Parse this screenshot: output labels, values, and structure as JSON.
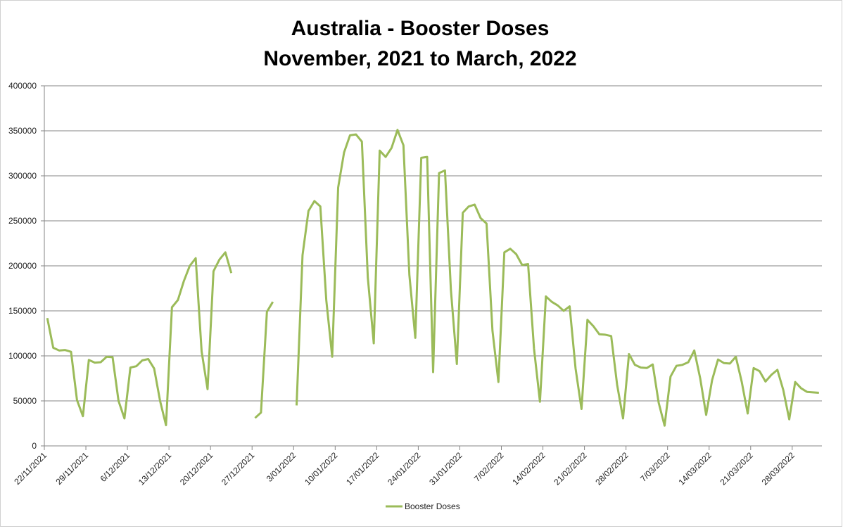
{
  "chart_data": {
    "type": "line",
    "title": "Australia - Booster Doses",
    "subtitle": "November, 2021 to March, 2022",
    "x": [
      "22/11/2021",
      "23/11/2021",
      "24/11/2021",
      "25/11/2021",
      "26/11/2021",
      "27/11/2021",
      "28/11/2021",
      "29/11/2021",
      "30/11/2021",
      "1/12/2021",
      "2/12/2021",
      "3/12/2021",
      "4/12/2021",
      "5/12/2021",
      "6/12/2021",
      "7/12/2021",
      "8/12/2021",
      "9/12/2021",
      "10/12/2021",
      "11/12/2021",
      "12/12/2021",
      "13/12/2021",
      "14/12/2021",
      "15/12/2021",
      "16/12/2021",
      "17/12/2021",
      "18/12/2021",
      "19/12/2021",
      "20/12/2021",
      "21/12/2021",
      "22/12/2021",
      "23/12/2021",
      "24/12/2021",
      "25/12/2021",
      "26/12/2021",
      "27/12/2021",
      "28/12/2021",
      "29/12/2021",
      "30/12/2021",
      "31/12/2021",
      "1/01/2022",
      "2/01/2022",
      "3/01/2022",
      "4/01/2022",
      "5/01/2022",
      "6/01/2022",
      "7/01/2022",
      "8/01/2022",
      "9/01/2022",
      "10/01/2022",
      "11/01/2022",
      "12/01/2022",
      "13/01/2022",
      "14/01/2022",
      "15/01/2022",
      "16/01/2022",
      "17/01/2022",
      "18/01/2022",
      "19/01/2022",
      "20/01/2022",
      "21/01/2022",
      "22/01/2022",
      "23/01/2022",
      "24/01/2022",
      "25/01/2022",
      "26/01/2022",
      "27/01/2022",
      "28/01/2022",
      "29/01/2022",
      "30/01/2022",
      "31/01/2022",
      "1/02/2022",
      "2/02/2022",
      "3/02/2022",
      "4/02/2022",
      "5/02/2022",
      "6/02/2022",
      "7/02/2022",
      "8/02/2022",
      "9/02/2022",
      "10/02/2022",
      "11/02/2022",
      "12/02/2022",
      "13/02/2022",
      "14/02/2022",
      "15/02/2022",
      "16/02/2022",
      "17/02/2022",
      "18/02/2022",
      "19/02/2022",
      "20/02/2022",
      "21/02/2022",
      "22/02/2022",
      "23/02/2022",
      "24/02/2022",
      "25/02/2022",
      "26/02/2022",
      "27/02/2022",
      "28/02/2022",
      "1/03/2022",
      "2/03/2022",
      "3/03/2022",
      "4/03/2022",
      "5/03/2022",
      "6/03/2022",
      "7/03/2022",
      "8/03/2022",
      "9/03/2022",
      "10/03/2022",
      "11/03/2022",
      "12/03/2022",
      "13/03/2022",
      "14/03/2022",
      "15/03/2022",
      "16/03/2022",
      "17/03/2022",
      "18/03/2022",
      "19/03/2022",
      "20/03/2022",
      "21/03/2022",
      "22/03/2022",
      "23/03/2022",
      "24/03/2022",
      "25/03/2022",
      "26/03/2022",
      "27/03/2022",
      "28/03/2022",
      "29/03/2022",
      "30/03/2022",
      "31/03/2022",
      "1/04/2022"
    ],
    "series": [
      {
        "name": "Booster Doses",
        "color": "#9bbb59",
        "values": [
          142000,
          109000,
          106000,
          106500,
          104500,
          51000,
          33000,
          95500,
          92500,
          93000,
          99000,
          98500,
          50000,
          30500,
          87000,
          88500,
          95000,
          96500,
          86000,
          50000,
          23000,
          154000,
          162000,
          183000,
          200000,
          208500,
          105000,
          63000,
          194000,
          207000,
          215000,
          192000,
          null,
          null,
          null,
          31000,
          37000,
          149000,
          160000,
          null,
          null,
          null,
          45000,
          212000,
          261000,
          272000,
          266000,
          162000,
          99000,
          287000,
          326000,
          345000,
          346000,
          338000,
          187000,
          114000,
          328000,
          321000,
          331000,
          351000,
          334000,
          190000,
          120000,
          320000,
          321000,
          82000,
          303000,
          306000,
          173000,
          91000,
          259000,
          266000,
          268000,
          253000,
          247000,
          128000,
          71000,
          215000,
          219000,
          213000,
          201000,
          202000,
          108000,
          49000,
          166000,
          160000,
          156000,
          150000,
          155000,
          86000,
          41000,
          140000,
          133000,
          124000,
          123500,
          122000,
          68000,
          30500,
          102000,
          90000,
          87000,
          86500,
          90500,
          48000,
          22500,
          77000,
          89000,
          90000,
          93000,
          106000,
          75000,
          34500,
          73000,
          96000,
          92000,
          91500,
          99000,
          71000,
          36000,
          86500,
          83000,
          71500,
          79000,
          84500,
          62000,
          29500,
          71000,
          64000,
          60000,
          59500,
          59000
        ]
      }
    ],
    "xlim": [
      "22/11/2021",
      "1/04/2022"
    ],
    "xticks": [
      "22/11/2021",
      "29/11/2021",
      "6/12/2021",
      "13/12/2021",
      "20/12/2021",
      "27/12/2021",
      "3/01/2022",
      "10/01/2022",
      "17/01/2022",
      "24/01/2022",
      "31/01/2022",
      "7/02/2022",
      "14/02/2022",
      "21/02/2022",
      "28/02/2022",
      "7/03/2022",
      "14/03/2022",
      "21/03/2022",
      "28/03/2022"
    ],
    "ylim": [
      0,
      400000
    ],
    "yticks": [
      0,
      50000,
      100000,
      150000,
      200000,
      250000,
      300000,
      350000,
      400000
    ],
    "grid": true,
    "legend": "bottom"
  }
}
